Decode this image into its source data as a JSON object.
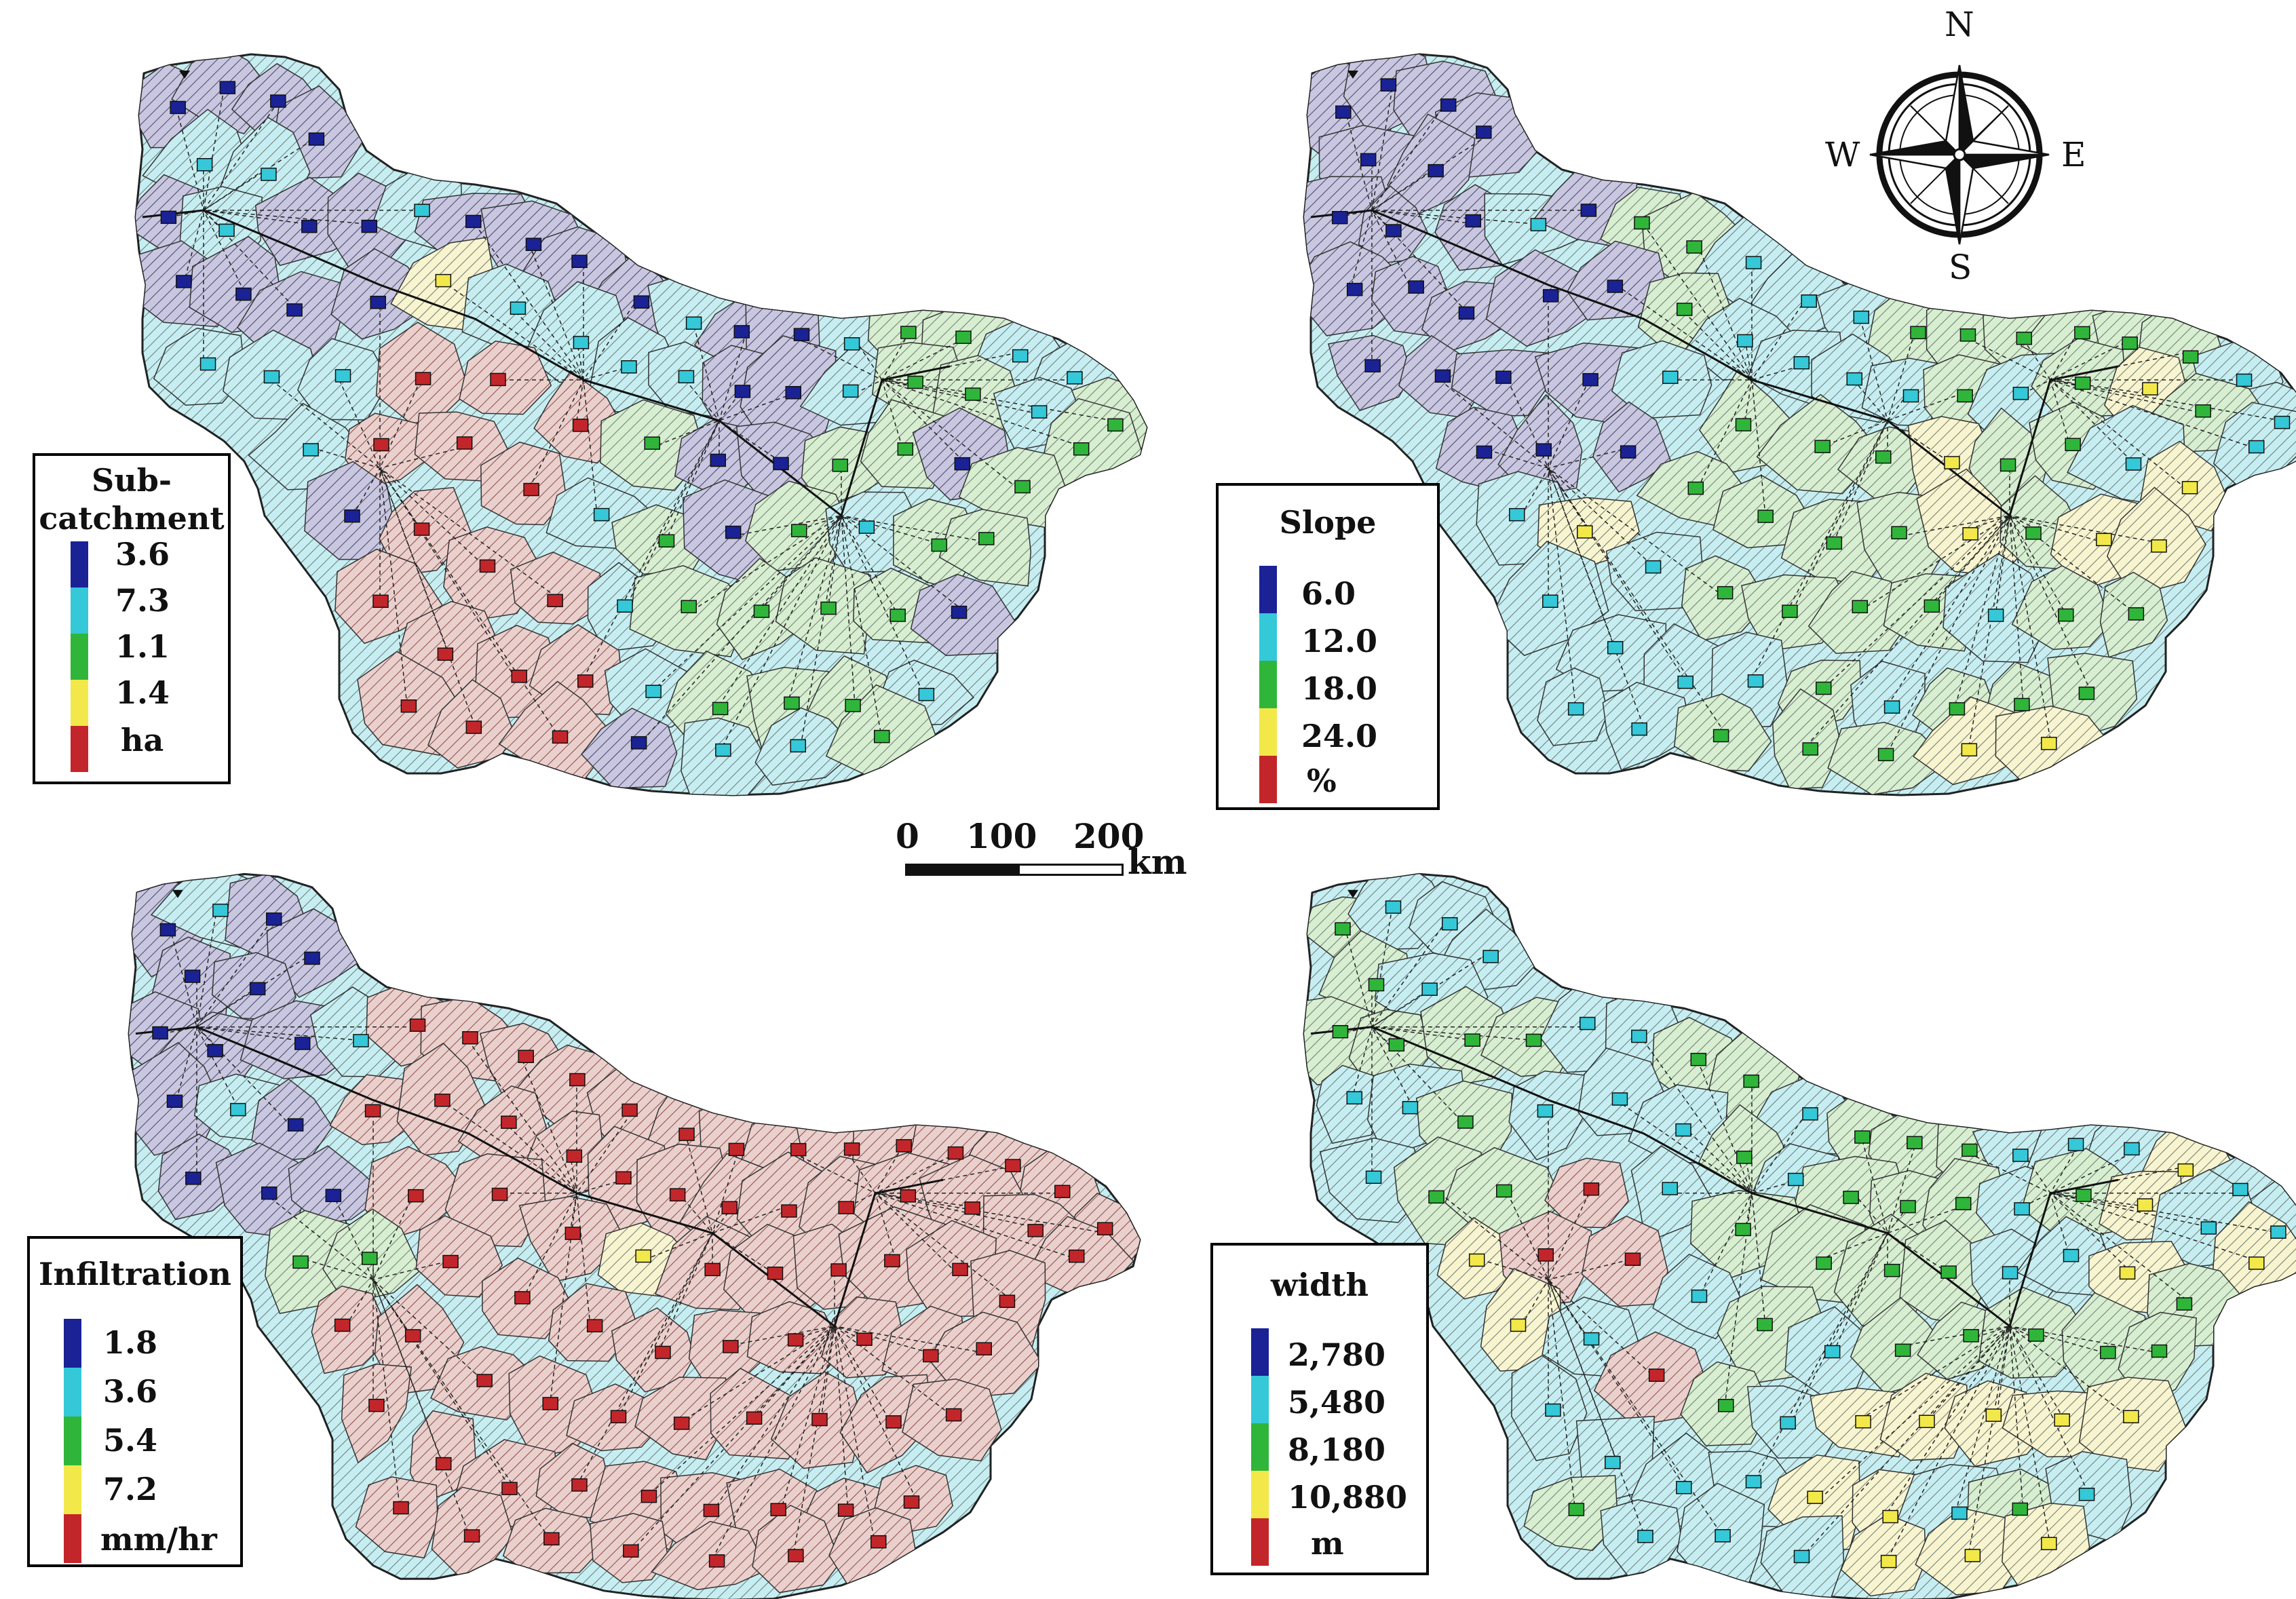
{
  "colors": {
    "class1": "#1a2296",
    "class2": "#34c8d8",
    "class3": "#2fb63a",
    "class4": "#f2e84a",
    "class5": "#c3262a",
    "fill_dark": "#c9c7df",
    "fill_cyan": "#c6eef2",
    "fill_green": "#d7eed0",
    "fill_yellow": "#f8f4cf",
    "fill_red": "#ead0cd"
  },
  "maps": [
    {
      "id": "subcatchment",
      "legend_title": "Sub-catchment",
      "legend_title_lines": [
        "Sub-",
        "catchment"
      ],
      "values": [
        "3.6",
        "7.3",
        "1.1",
        "1.4"
      ],
      "unit": "ha"
    },
    {
      "id": "slope",
      "legend_title": "Slope",
      "legend_title_lines": [
        "Slope"
      ],
      "values": [
        "6.0",
        "12.0",
        "18.0",
        "24.0"
      ],
      "unit": "%"
    },
    {
      "id": "infiltration",
      "legend_title": "Infiltration",
      "legend_title_lines": [
        "Infiltration"
      ],
      "values": [
        "1.8",
        "3.6",
        "5.4",
        "7.2"
      ],
      "unit": "mm/hr"
    },
    {
      "id": "width",
      "legend_title": "width",
      "legend_title_lines": [
        "width"
      ],
      "values": [
        "2,780",
        "5,480",
        "8,180",
        "10,880"
      ],
      "unit": "m"
    }
  ],
  "scale_bar": {
    "ticks": [
      "0",
      "100",
      "200"
    ],
    "unit": "km"
  },
  "compass": {
    "north": "N",
    "south": "S",
    "east": "E",
    "west": "W"
  }
}
